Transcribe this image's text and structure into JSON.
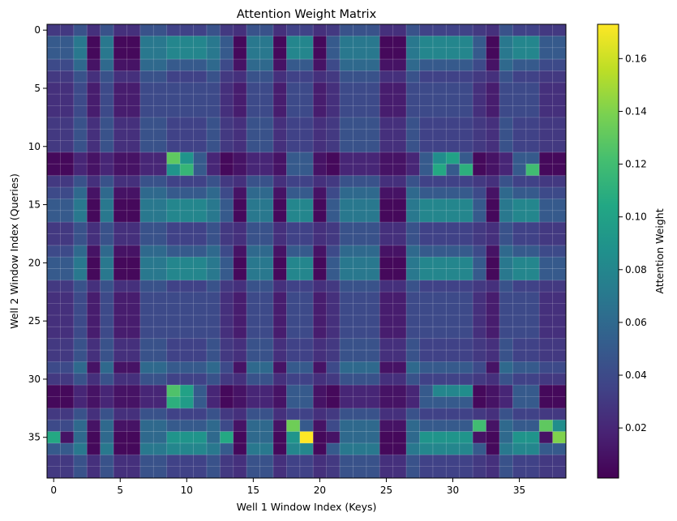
{
  "chart_data": {
    "type": "heatmap",
    "title": "Attention Weight Matrix",
    "xlabel": "Well 1 Window Index (Keys)",
    "ylabel": "Well 2 Window Index (Queries)",
    "x_count": 39,
    "y_count": 39,
    "x_ticks": [
      0,
      5,
      10,
      15,
      20,
      25,
      30,
      35
    ],
    "y_ticks": [
      0,
      5,
      10,
      15,
      20,
      25,
      30,
      35
    ],
    "colormap": "viridis",
    "colorbar": {
      "label": "Attention Weight",
      "range": [
        0.001,
        0.173
      ],
      "ticks": [
        0.02,
        0.04,
        0.06,
        0.08,
        0.1,
        0.12,
        0.14,
        0.16
      ],
      "tick_labels": [
        "0.02",
        "0.04",
        "0.06",
        "0.08",
        "0.10",
        "0.12",
        "0.14",
        "0.16"
      ]
    },
    "grid": true,
    "row_pattern": [
      1,
      3,
      3,
      2,
      1,
      0,
      0,
      0,
      1,
      1,
      1,
      4,
      4,
      1,
      2,
      3,
      3,
      1,
      1,
      2,
      3,
      3,
      1,
      0,
      0,
      0,
      0,
      1,
      1,
      2,
      1,
      4,
      4,
      1,
      2,
      5,
      3,
      1,
      1
    ],
    "col_pattern": [
      3,
      3,
      1,
      2,
      1,
      2,
      2,
      1,
      1,
      0,
      0,
      0,
      1,
      3,
      2,
      1,
      1,
      2,
      0,
      0,
      2,
      3,
      1,
      1,
      1,
      2,
      2,
      1,
      0,
      0,
      0,
      0,
      3,
      2,
      1,
      0,
      0,
      3,
      3
    ],
    "values_by_pattern": [
      [
        0.04,
        0.04,
        0.015,
        0.025,
        0.03,
        0.005,
        0.005,
        0.015,
        0.06
      ],
      [
        0.035,
        0.045,
        0.025,
        0.03,
        0.03,
        0.01,
        0.01,
        0.03,
        0.04
      ],
      [
        0.05,
        0.06,
        0.01,
        0.04,
        0.01,
        0.01,
        0.01,
        0.02,
        0.07
      ],
      [
        0.08,
        0.07,
        0.005,
        0.05,
        0.005,
        0.01,
        0.01,
        0.015,
        0.09
      ],
      [
        0.05,
        0.02,
        0.01,
        0.005,
        0.01,
        0.02,
        0.06,
        0.075,
        0.02
      ],
      [
        0.09,
        0.06,
        0.005,
        0.01,
        0.01,
        0.02,
        0.05,
        0.08,
        0.03
      ]
    ],
    "cell_overrides": [
      {
        "row": 11,
        "col": 9,
        "value": 0.13
      },
      {
        "row": 11,
        "col": 10,
        "value": 0.09
      },
      {
        "row": 12,
        "col": 9,
        "value": 0.09
      },
      {
        "row": 12,
        "col": 10,
        "value": 0.115
      },
      {
        "row": 11,
        "col": 29,
        "value": 0.085
      },
      {
        "row": 11,
        "col": 30,
        "value": 0.1
      },
      {
        "row": 12,
        "col": 29,
        "value": 0.105
      },
      {
        "row": 12,
        "col": 31,
        "value": 0.11
      },
      {
        "row": 12,
        "col": 36,
        "value": 0.12
      },
      {
        "row": 31,
        "col": 9,
        "value": 0.125
      },
      {
        "row": 31,
        "col": 10,
        "value": 0.1
      },
      {
        "row": 32,
        "col": 9,
        "value": 0.11
      },
      {
        "row": 32,
        "col": 10,
        "value": 0.095
      },
      {
        "row": 31,
        "col": 29,
        "value": 0.08
      },
      {
        "row": 31,
        "col": 30,
        "value": 0.08
      },
      {
        "row": 31,
        "col": 31,
        "value": 0.085
      },
      {
        "row": 34,
        "col": 18,
        "value": 0.135
      },
      {
        "row": 35,
        "col": 19,
        "value": 0.173
      },
      {
        "row": 34,
        "col": 32,
        "value": 0.12
      },
      {
        "row": 34,
        "col": 37,
        "value": 0.13
      },
      {
        "row": 34,
        "col": 38,
        "value": 0.085
      },
      {
        "row": 35,
        "col": 38,
        "value": 0.14
      },
      {
        "row": 35,
        "col": 0,
        "value": 0.105
      },
      {
        "row": 35,
        "col": 13,
        "value": 0.105
      }
    ]
  }
}
